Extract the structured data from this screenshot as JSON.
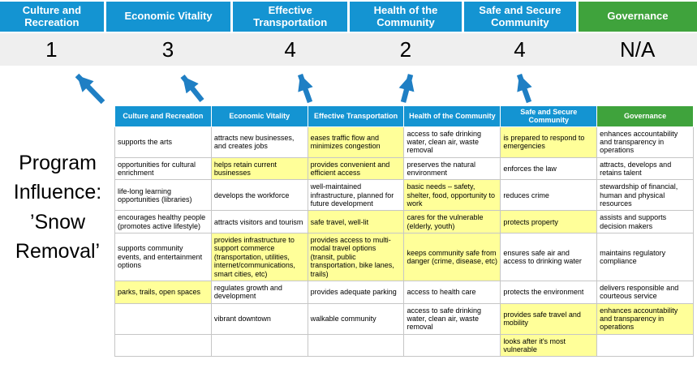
{
  "colors": {
    "header_blue": "#1494d2",
    "header_green": "#3fa33c",
    "highlight_yellow": "#ffff99",
    "arrow_blue": "#1f7fc4",
    "score_band_gray": "#efefef"
  },
  "scoreboard": {
    "columns": [
      {
        "label": "Culture and Recreation",
        "score": "1"
      },
      {
        "label": "Economic Vitality",
        "score": "3"
      },
      {
        "label": "Effective Transportation",
        "score": "4"
      },
      {
        "label": "Health of the Community",
        "score": "2"
      },
      {
        "label": "Safe and Secure Community",
        "score": "4"
      },
      {
        "label": "Governance",
        "score": "N/A"
      }
    ]
  },
  "program": {
    "label": "Program Influence: ’Snow Removal’"
  },
  "matrix": {
    "headers": [
      {
        "label": "Culture and Recreation",
        "color": "blue"
      },
      {
        "label": "Economic Vitality",
        "color": "blue"
      },
      {
        "label": "Effective Transportation",
        "color": "blue"
      },
      {
        "label": "Health of the Community",
        "color": "blue"
      },
      {
        "label": "Safe and Secure Community",
        "color": "blue"
      },
      {
        "label": "Governance",
        "color": "green"
      }
    ],
    "rows": [
      [
        {
          "text": "supports the arts",
          "highlight": false
        },
        {
          "text": "attracts new businesses, and creates jobs",
          "highlight": false
        },
        {
          "text": "eases traffic flow and minimizes congestion",
          "highlight": true
        },
        {
          "text": "access to safe drinking water, clean air, waste removal",
          "highlight": false
        },
        {
          "text": "is prepared to respond to emergencies",
          "highlight": true
        },
        {
          "text": "enhances accountability and transparency in operations",
          "highlight": false
        }
      ],
      [
        {
          "text": "opportunities for cultural enrichment",
          "highlight": false
        },
        {
          "text": "helps retain current businesses",
          "highlight": true
        },
        {
          "text": "provides convenient and efficient access",
          "highlight": true
        },
        {
          "text": "preserves the natural environment",
          "highlight": false
        },
        {
          "text": "enforces the law",
          "highlight": false
        },
        {
          "text": "attracts, develops and retains talent",
          "highlight": false
        }
      ],
      [
        {
          "text": "life-long learning opportunities (libraries)",
          "highlight": false
        },
        {
          "text": "develops the workforce",
          "highlight": false
        },
        {
          "text": "well-maintained infrastructure, planned for future development",
          "highlight": false
        },
        {
          "text": "basic needs – safety, shelter, food, opportunity to work",
          "highlight": true
        },
        {
          "text": "reduces crime",
          "highlight": false
        },
        {
          "text": "stewardship of financial, human and physical resources",
          "highlight": false
        }
      ],
      [
        {
          "text": "encourages healthy people (promotes active lifestyle)",
          "highlight": false
        },
        {
          "text": "attracts visitors and tourism",
          "highlight": false
        },
        {
          "text": "safe travel, well-lit",
          "highlight": true
        },
        {
          "text": "cares for the vulnerable (elderly, youth)",
          "highlight": true
        },
        {
          "text": "protects property",
          "highlight": true
        },
        {
          "text": "assists and supports decision makers",
          "highlight": false
        }
      ],
      [
        {
          "text": "supports community events, and entertainment options",
          "highlight": false
        },
        {
          "text": "provides infrastructure to support commerce (transportation, utilities, internet/communications, smart cities, etc)",
          "highlight": true
        },
        {
          "text": "provides access to multi-modal travel options (transit, public transportation, bike lanes, trails)",
          "highlight": true
        },
        {
          "text": "keeps community safe from danger (crime, disease, etc)",
          "highlight": true
        },
        {
          "text": "ensures safe air and access to drinking water",
          "highlight": false
        },
        {
          "text": "maintains regulatory compliance",
          "highlight": false
        }
      ],
      [
        {
          "text": "parks, trails, open spaces",
          "highlight": true
        },
        {
          "text": "regulates growth and development",
          "highlight": false
        },
        {
          "text": "provides adequate parking",
          "highlight": false
        },
        {
          "text": "access to health care",
          "highlight": false
        },
        {
          "text": "protects the environment",
          "highlight": false
        },
        {
          "text": "delivers responsible and courteous service",
          "highlight": false
        }
      ],
      [
        {
          "text": "",
          "highlight": false
        },
        {
          "text": "vibrant downtown",
          "highlight": false
        },
        {
          "text": "walkable community",
          "highlight": false
        },
        {
          "text": "access to safe drinking water, clean air, waste removal",
          "highlight": false
        },
        {
          "text": "provides safe travel and mobility",
          "highlight": true
        },
        {
          "text": "enhances accountability and transparency in operations",
          "highlight": true
        }
      ],
      [
        {
          "text": "",
          "highlight": false
        },
        {
          "text": "",
          "highlight": false
        },
        {
          "text": "",
          "highlight": false
        },
        {
          "text": "",
          "highlight": false
        },
        {
          "text": "looks after it's most vulnerable",
          "highlight": true
        },
        {
          "text": "",
          "highlight": false
        }
      ]
    ]
  }
}
